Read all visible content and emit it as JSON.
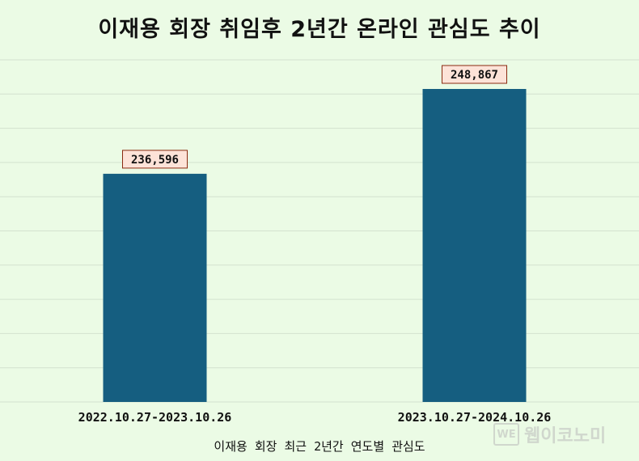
{
  "chart_data": {
    "type": "bar",
    "title": "이재용 회장 취임후 2년간 온라인 관심도 추이",
    "xlabel": "이재용 회장 최근 2년간 연도별 관심도",
    "ylabel": "",
    "categories": [
      "2022.10.27-2023.10.26",
      "2023.10.27-2024.10.26"
    ],
    "values": [
      236596,
      248867
    ],
    "data_labels": [
      "236,596",
      "248,867"
    ],
    "ylim": [
      203580,
      253080
    ],
    "grid": true,
    "colors": {
      "bar": "#155e80",
      "background": "#ebfbe5",
      "grid": "#d3e2cf",
      "label_box_fill": "#fde3d8",
      "label_box_stroke": "#8a2a10"
    }
  },
  "watermark": {
    "logo_text": "WE",
    "text": "웹이코노미"
  }
}
